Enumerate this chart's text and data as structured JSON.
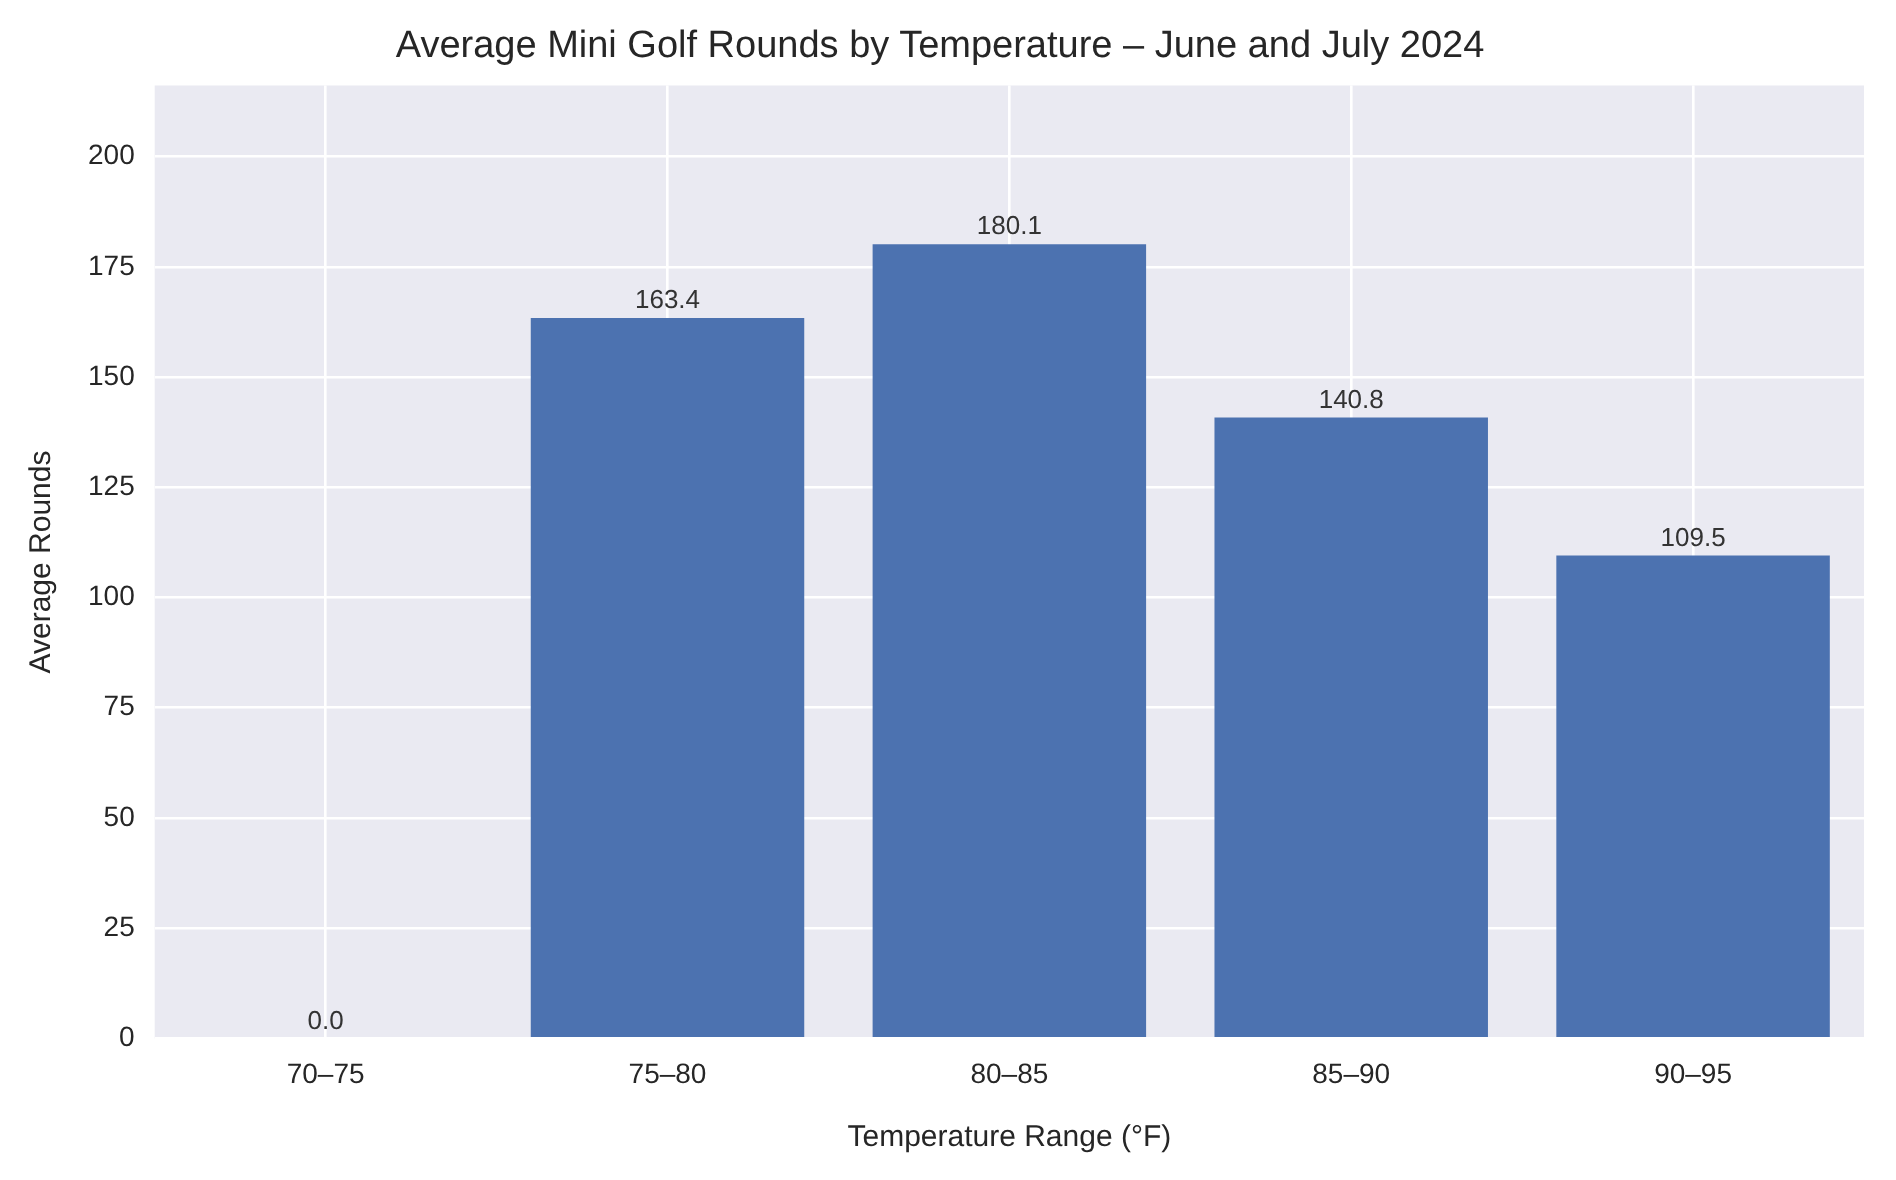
{
  "chart_data": {
    "type": "bar",
    "title": "Average Mini Golf Rounds by Temperature – June and July 2024",
    "xlabel": "Temperature Range (°F)",
    "ylabel": "Average Rounds",
    "categories": [
      "70–75",
      "75–80",
      "80–85",
      "85–90",
      "90–95"
    ],
    "values": [
      0.0,
      163.4,
      180.1,
      140.8,
      109.5
    ],
    "value_labels": [
      "0.0",
      "163.4",
      "180.1",
      "140.8",
      "109.5"
    ],
    "color": "#4c72b0",
    "ylim": [
      0,
      216.1
    ],
    "yticks": [
      0,
      25,
      50,
      75,
      100,
      125,
      150,
      175,
      200
    ],
    "grid": true,
    "legend": false
  }
}
